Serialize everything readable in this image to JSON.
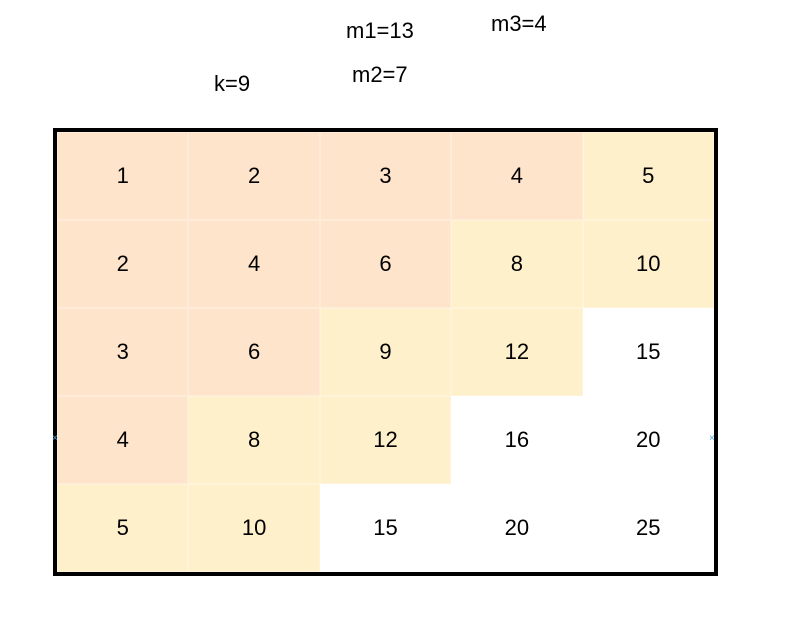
{
  "labels": {
    "m1": "m1=13",
    "m2": "m2=7",
    "m3": "m3=4",
    "k": "k=9"
  },
  "colors": {
    "tier1": "#ffe4cc",
    "tier2": "#fff0cc",
    "tier3": "#ffffff",
    "border": "#000000",
    "marker": "#4da6d6"
  },
  "grid": {
    "rows": [
      [
        {
          "value": "1",
          "tier": "tier1"
        },
        {
          "value": "2",
          "tier": "tier1"
        },
        {
          "value": "3",
          "tier": "tier1"
        },
        {
          "value": "4",
          "tier": "tier1"
        },
        {
          "value": "5",
          "tier": "tier2"
        }
      ],
      [
        {
          "value": "2",
          "tier": "tier1"
        },
        {
          "value": "4",
          "tier": "tier1"
        },
        {
          "value": "6",
          "tier": "tier1"
        },
        {
          "value": "8",
          "tier": "tier2"
        },
        {
          "value": "10",
          "tier": "tier2"
        }
      ],
      [
        {
          "value": "3",
          "tier": "tier1"
        },
        {
          "value": "6",
          "tier": "tier1"
        },
        {
          "value": "9",
          "tier": "tier2"
        },
        {
          "value": "12",
          "tier": "tier2"
        },
        {
          "value": "15",
          "tier": "tier3"
        }
      ],
      [
        {
          "value": "4",
          "tier": "tier1"
        },
        {
          "value": "8",
          "tier": "tier2"
        },
        {
          "value": "12",
          "tier": "tier2"
        },
        {
          "value": "16",
          "tier": "tier3"
        },
        {
          "value": "20",
          "tier": "tier3"
        }
      ],
      [
        {
          "value": "5",
          "tier": "tier2"
        },
        {
          "value": "10",
          "tier": "tier2"
        },
        {
          "value": "15",
          "tier": "tier3"
        },
        {
          "value": "20",
          "tier": "tier3"
        },
        {
          "value": "25",
          "tier": "tier3"
        }
      ]
    ]
  },
  "markers": {
    "left": "×",
    "right": "×"
  }
}
